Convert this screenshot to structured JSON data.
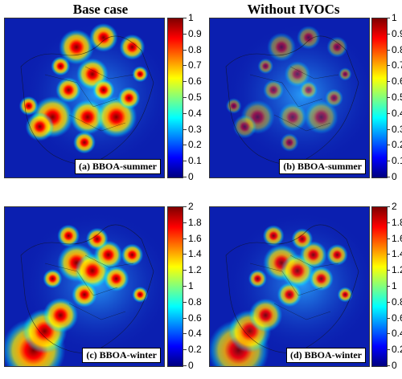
{
  "titles": {
    "left": "Base case",
    "right": "Without IVOCs"
  },
  "panels": [
    {
      "label": "(a) BBOA-summer",
      "scale": "summer",
      "intensity": 1.0,
      "season": "summer"
    },
    {
      "label": "(b) BBOA-summer",
      "scale": "summer",
      "intensity": 0.55,
      "season": "summer"
    },
    {
      "label": "(c) BBOA-winter",
      "scale": "winter",
      "intensity": 1.0,
      "season": "winter"
    },
    {
      "label": "(d) BBOA-winter",
      "scale": "winter",
      "intensity": 0.9,
      "season": "winter"
    }
  ],
  "colorbars": {
    "summer": {
      "min": 0,
      "max": 1,
      "ticks": [
        "1",
        "0.9",
        "0.8",
        "0.7",
        "0.6",
        "0.5",
        "0.4",
        "0.3",
        "0.2",
        "0.1",
        "0"
      ]
    },
    "winter": {
      "min": 0,
      "max": 2,
      "ticks": [
        "2",
        "1.8",
        "1.6",
        "1.4",
        "1.2",
        "1",
        "0.8",
        "0.6",
        "0.4",
        "0.2",
        "0"
      ]
    }
  },
  "colormap": [
    "#00007f",
    "#0000ff",
    "#007fff",
    "#00ffff",
    "#7fff7f",
    "#ffff00",
    "#ff7f00",
    "#ff0000",
    "#7f0000"
  ]
}
